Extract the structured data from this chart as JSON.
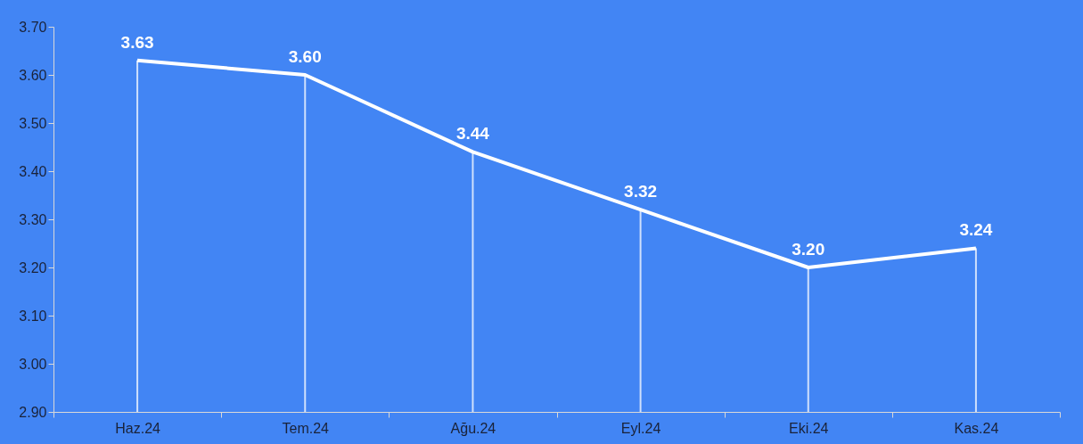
{
  "chart_data": {
    "type": "line",
    "categories": [
      "Haz.24",
      "Tem.24",
      "Ağu.24",
      "Eyl.24",
      "Eki.24",
      "Kas.24"
    ],
    "series": [
      {
        "color": "#ffffff",
        "values": [
          3.63,
          3.6,
          3.44,
          3.32,
          3.2,
          3.24
        ],
        "value_labels": [
          "3.63",
          "3.60",
          "3.44",
          "3.32",
          "3.20",
          "3.24"
        ]
      }
    ],
    "ylim": [
      2.9,
      3.7
    ],
    "yticks": [
      {
        "value": 2.9,
        "label": "2.90"
      },
      {
        "value": 3.0,
        "label": "3.00"
      },
      {
        "value": 3.1,
        "label": "3.10"
      },
      {
        "value": 3.2,
        "label": "3.20"
      },
      {
        "value": 3.3,
        "label": "3.30"
      },
      {
        "value": 3.4,
        "label": "3.40"
      },
      {
        "value": 3.5,
        "label": "3.50"
      },
      {
        "value": 3.6,
        "label": "3.60"
      },
      {
        "value": 3.7,
        "label": "3.70"
      }
    ],
    "line_style": "solid"
  }
}
